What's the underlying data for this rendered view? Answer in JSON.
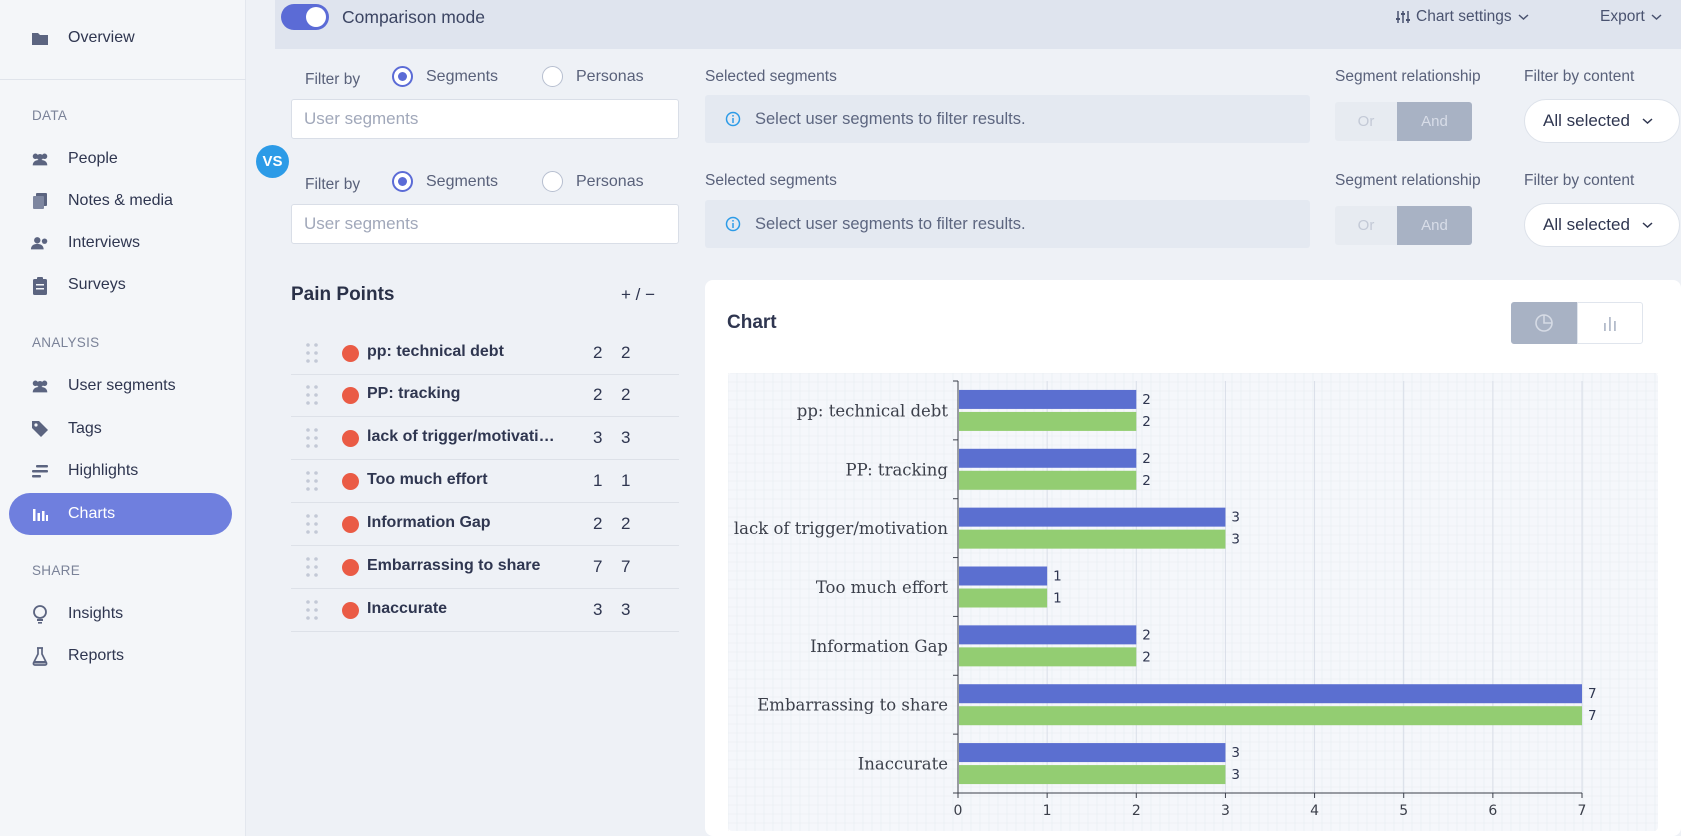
{
  "sidebar": {
    "overview": "Overview",
    "sections": {
      "data": "DATA",
      "analysis": "ANALYSIS",
      "share": "SHARE"
    },
    "data_items": [
      "People",
      "Notes & media",
      "Interviews",
      "Surveys"
    ],
    "analysis_items": [
      "User segments",
      "Tags",
      "Highlights",
      "Charts"
    ],
    "share_items": [
      "Insights",
      "Reports"
    ],
    "active_item": "Charts"
  },
  "topbar": {
    "comparison_mode_label": "Comparison mode",
    "comparison_mode_on": true,
    "chart_settings_label": "Chart settings",
    "export_label": "Export"
  },
  "filters": {
    "filter_by_label": "Filter by",
    "option_segments": "Segments",
    "option_personas": "Personas",
    "input_placeholder": "User segments",
    "selected_segments_label": "Selected segments",
    "selected_segments_info": "Select user segments to filter results.",
    "segment_relationship_label": "Segment relationship",
    "or_label": "Or",
    "and_label": "And",
    "filter_by_content_label": "Filter by content",
    "filter_by_content_value": "All selected",
    "vs_label": "VS"
  },
  "pain_points": {
    "title": "Pain Points",
    "plus_minus": "+ / −",
    "rows": [
      {
        "name": "pp: technical debt",
        "a": "2",
        "b": "2"
      },
      {
        "name": "PP: tracking",
        "a": "2",
        "b": "2"
      },
      {
        "name": "lack of trigger/motivation",
        "a": "3",
        "b": "3"
      },
      {
        "name": "Too much effort",
        "a": "1",
        "b": "1"
      },
      {
        "name": "Information Gap",
        "a": "2",
        "b": "2"
      },
      {
        "name": "Embarrassing to share",
        "a": "7",
        "b": "7"
      },
      {
        "name": "Inaccurate",
        "a": "3",
        "b": "3"
      }
    ]
  },
  "chart_card": {
    "title": "Chart"
  },
  "chart_data": {
    "type": "bar",
    "orientation": "horizontal",
    "categories": [
      "pp: technical debt",
      "PP: tracking",
      "lack of trigger/motivation",
      "Too much effort",
      "Information Gap",
      "Embarrassing to share",
      "Inaccurate"
    ],
    "series": [
      {
        "values": [
          2,
          2,
          3,
          1,
          2,
          7,
          3
        ],
        "color": "#5b6fd0"
      },
      {
        "values": [
          2,
          2,
          3,
          1,
          2,
          7,
          3
        ],
        "color": "#93cd72"
      }
    ],
    "xlim": [
      0,
      7
    ],
    "xticks": [
      "0",
      "1",
      "2",
      "3",
      "4",
      "5",
      "6",
      "7"
    ],
    "grid": true
  },
  "colors": {
    "accent": "#5b6bd6",
    "active_nav": "#6f7fde",
    "pain_dot": "#ea5b45",
    "vs_badge": "#2c9be7"
  }
}
